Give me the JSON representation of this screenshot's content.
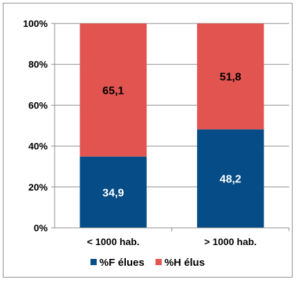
{
  "chart_data": {
    "type": "bar",
    "stacked": true,
    "categories": [
      "< 1000 hab.",
      "> 1000 hab."
    ],
    "series": [
      {
        "name": "%F élues",
        "values": [
          34.9,
          48.2
        ],
        "labels": [
          "34,9",
          "48,2"
        ],
        "color": "#064d88",
        "label_color": "#ffffff"
      },
      {
        "name": "%H élus",
        "values": [
          65.1,
          51.8
        ],
        "labels": [
          "65,1",
          "51,8"
        ],
        "color": "#e25450",
        "label_color": "#000000"
      }
    ],
    "ylim": [
      0,
      100
    ],
    "yticks": [
      0,
      20,
      40,
      60,
      80,
      100
    ],
    "ytick_labels": [
      "0%",
      "20%",
      "40%",
      "60%",
      "80%",
      "100%"
    ],
    "grid": true,
    "legend_position": "bottom",
    "title": "",
    "xlabel": "",
    "ylabel": ""
  }
}
